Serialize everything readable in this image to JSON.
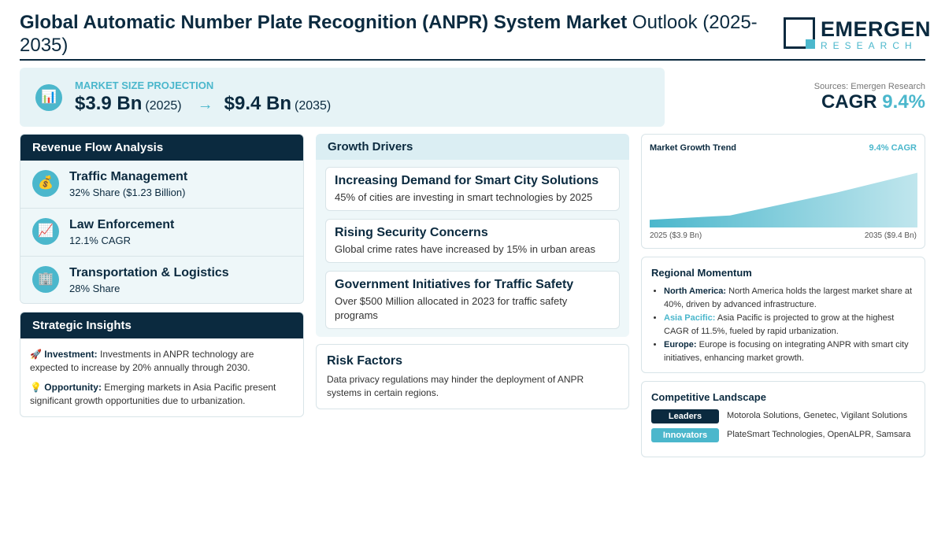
{
  "header": {
    "title_bold": "Global Automatic Number Plate Recognition (ANPR) System Market",
    "title_rest": "Outlook (2025-2035)",
    "logo_main": "EMERGEN",
    "logo_sub": "RESEARCH"
  },
  "projection": {
    "label": "MARKET SIZE PROJECTION",
    "icon": "chart-icon",
    "start_value": "$3.9 Bn",
    "start_year": "(2025)",
    "arrow": "→",
    "end_value": "$9.4 Bn",
    "end_year": "(2035)"
  },
  "summary": {
    "sources": "Sources: Emergen Research",
    "cagr_label": "CAGR",
    "cagr_value": "9.4%"
  },
  "revenue": {
    "heading": "Revenue Flow Analysis",
    "items": [
      {
        "icon": "money-bag-icon",
        "title": "Traffic Management",
        "sub": "32% Share ($1.23 Billion)"
      },
      {
        "icon": "trend-chart-icon",
        "title": "Law Enforcement",
        "sub": "12.1% CAGR"
      },
      {
        "icon": "building-icon",
        "title": "Transportation & Logistics",
        "sub": "28% Share"
      }
    ]
  },
  "strategic": {
    "heading": "Strategic Insights",
    "items": [
      {
        "icon": "rocket-icon",
        "label": "Investment:",
        "text": "Investments in ANPR technology are expected to increase by 20% annually through 2030."
      },
      {
        "icon": "lightbulb-icon",
        "label": "Opportunity:",
        "text": "Emerging markets in Asia Pacific present significant growth opportunities due to urbanization."
      }
    ]
  },
  "growth": {
    "heading": "Growth Drivers",
    "items": [
      {
        "title": "Increasing Demand for Smart City Solutions",
        "sub": "45% of cities are investing in smart technologies by 2025"
      },
      {
        "title": "Rising Security Concerns",
        "sub": "Global crime rates have increased by 15% in urban areas"
      },
      {
        "title": "Government Initiatives for Traffic Safety",
        "sub": "Over $500 Million allocated in 2023 for traffic safety programs"
      }
    ]
  },
  "risk": {
    "heading": "Risk Factors",
    "text": "Data privacy regulations may hinder the deployment of ANPR systems in certain regions."
  },
  "trend": {
    "heading": "Market Growth Trend",
    "cagr": "9.4% CAGR",
    "start_label": "2025 ($3.9 Bn)",
    "end_label": "2035 ($9.4 Bn)"
  },
  "chart_data": {
    "type": "area",
    "x": [
      2025,
      2028,
      2032,
      2035
    ],
    "values": [
      3.9,
      4.4,
      7.1,
      9.4
    ],
    "ylim": [
      0,
      10
    ],
    "grid": false,
    "colors": [
      "#4bb7cc"
    ]
  },
  "region": {
    "heading": "Regional Momentum",
    "items": [
      {
        "name": "North America:",
        "highlight": false,
        "text": "North America holds the largest market share at 40%, driven by advanced infrastructure."
      },
      {
        "name": "Asia Pacific:",
        "highlight": true,
        "text": "Asia Pacific is projected to grow at the highest CAGR of 11.5%, fueled by rapid urbanization."
      },
      {
        "name": "Europe:",
        "highlight": false,
        "text": "Europe is focusing on integrating ANPR with smart city initiatives, enhancing market growth."
      }
    ]
  },
  "competitive": {
    "heading": "Competitive Landscape",
    "rows": [
      {
        "tag": "Leaders",
        "names": "Motorola Solutions, Genetec, Vigilant Solutions"
      },
      {
        "tag": "Innovators",
        "names": "PlateSmart Technologies, OpenALPR, Samsara"
      }
    ]
  },
  "colors": {
    "navy": "#0b2a3f",
    "accent": "#4bb7cc",
    "light_bg": "#e6f3f6"
  }
}
